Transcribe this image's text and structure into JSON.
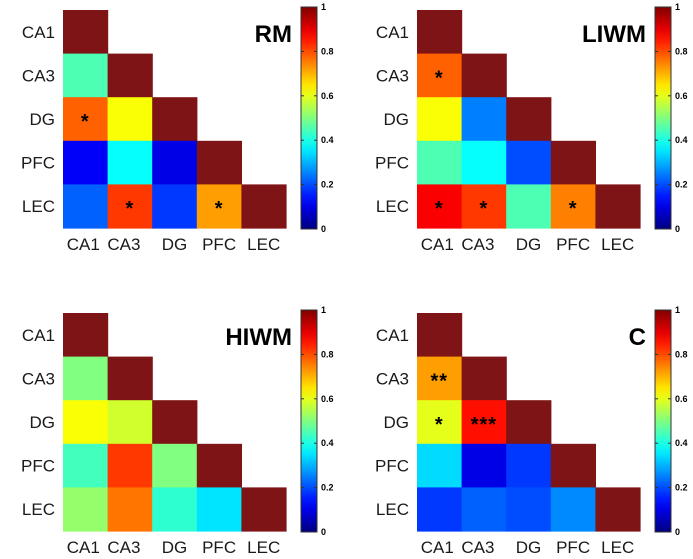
{
  "colors": {
    "diagonal": "#7f1416",
    "colormap": "jet"
  },
  "chart_data": [
    {
      "type": "heatmap",
      "title": "RM",
      "categories": [
        "CA1",
        "CA3",
        "DG",
        "PFC",
        "LEC"
      ],
      "colorbar": {
        "min": 0,
        "max": 1,
        "ticks": [
          "0",
          "0.2",
          "0.4",
          "0.6",
          "0.8",
          "1"
        ]
      },
      "cells": [
        [
          1.0
        ],
        [
          0.45,
          1.0
        ],
        [
          0.78,
          0.62,
          1.0
        ],
        [
          0.12,
          0.38,
          0.1,
          1.0
        ],
        [
          0.22,
          0.82,
          0.18,
          0.72,
          1.0
        ]
      ],
      "stars": [
        [
          ""
        ],
        [
          "",
          ""
        ],
        [
          "*",
          "",
          ""
        ],
        [
          "",
          "",
          "",
          ""
        ],
        [
          "",
          "*",
          "",
          "*",
          ""
        ]
      ]
    },
    {
      "type": "heatmap",
      "title": "LIWM",
      "categories": [
        "CA1",
        "CA3",
        "DG",
        "PFC",
        "LEC"
      ],
      "colorbar": {
        "min": 0,
        "max": 1,
        "ticks": [
          "0",
          "0.2",
          "0.4",
          "0.6",
          "0.8",
          "1"
        ]
      },
      "cells": [
        [
          1.0
        ],
        [
          0.78,
          1.0
        ],
        [
          0.62,
          0.25,
          1.0
        ],
        [
          0.45,
          0.38,
          0.2,
          1.0
        ],
        [
          0.88,
          0.82,
          0.45,
          0.75,
          1.0
        ]
      ],
      "stars": [
        [
          ""
        ],
        [
          "*",
          ""
        ],
        [
          "",
          "",
          ""
        ],
        [
          "",
          "",
          "",
          ""
        ],
        [
          "*",
          "*",
          "",
          "*",
          ""
        ]
      ]
    },
    {
      "type": "heatmap",
      "title": "HIWM",
      "categories": [
        "CA1",
        "CA3",
        "DG",
        "PFC",
        "LEC"
      ],
      "colorbar": {
        "min": 0,
        "max": 1,
        "ticks": [
          "0",
          "0.2",
          "0.4",
          "0.6",
          "0.8",
          "1"
        ]
      },
      "cells": [
        [
          1.0
        ],
        [
          0.5,
          1.0
        ],
        [
          0.62,
          0.58,
          1.0
        ],
        [
          0.44,
          0.82,
          0.5,
          1.0
        ],
        [
          0.52,
          0.76,
          0.42,
          0.35,
          1.0
        ]
      ],
      "stars": [
        [
          ""
        ],
        [
          "",
          ""
        ],
        [
          "",
          "",
          ""
        ],
        [
          "",
          "",
          "",
          ""
        ],
        [
          "",
          "",
          "",
          "",
          ""
        ]
      ]
    },
    {
      "type": "heatmap",
      "title": "C",
      "categories": [
        "CA1",
        "CA3",
        "DG",
        "PFC",
        "LEC"
      ],
      "colorbar": {
        "min": 0,
        "max": 1,
        "ticks": [
          "0",
          "0.2",
          "0.4",
          "0.6",
          "0.8",
          "1"
        ]
      },
      "cells": [
        [
          1.0
        ],
        [
          0.72,
          1.0
        ],
        [
          0.6,
          0.86,
          1.0
        ],
        [
          0.34,
          0.1,
          0.18,
          1.0
        ],
        [
          0.18,
          0.22,
          0.2,
          0.26,
          1.0
        ]
      ],
      "stars": [
        [
          ""
        ],
        [
          "**",
          ""
        ],
        [
          "*",
          "***",
          ""
        ],
        [
          "",
          "",
          "",
          ""
        ],
        [
          "",
          "",
          "",
          "",
          ""
        ]
      ]
    }
  ]
}
